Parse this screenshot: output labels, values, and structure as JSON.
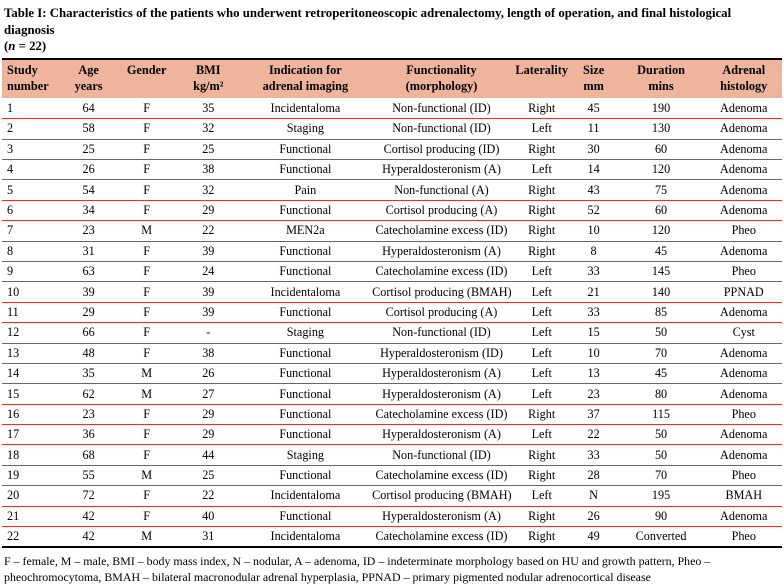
{
  "title": {
    "main": "Table I: Characteristics of the patients who underwent retroperitoneoscopic adrenalectomy, length of operation, and final histological diagnosis",
    "count_open": "(",
    "count_symbol": "n",
    "count_rest": " = 22)"
  },
  "colors": {
    "header_bg": "#efb49c",
    "row_divider": "#c1413e",
    "table_border": "#000000"
  },
  "table": {
    "columns": [
      {
        "id": "study-number",
        "line1": "Study",
        "line2": "number"
      },
      {
        "id": "age-years",
        "line1": "Age",
        "line2": "years"
      },
      {
        "id": "gender",
        "line1": "Gender",
        "line2": ""
      },
      {
        "id": "bmi",
        "line1": "BMI",
        "line2": "kg/m²"
      },
      {
        "id": "indication",
        "line1": "Indication for",
        "line2": "adrenal imaging"
      },
      {
        "id": "functionality",
        "line1": "Functionality",
        "line2": "(morphology)"
      },
      {
        "id": "laterality",
        "line1": "Laterality",
        "line2": ""
      },
      {
        "id": "size-mm",
        "line1": "Size",
        "line2": "mm"
      },
      {
        "id": "duration-mins",
        "line1": "Duration",
        "line2": "mins"
      },
      {
        "id": "adrenal-histology",
        "line1": "Adrenal",
        "line2": "histology"
      }
    ],
    "rows": [
      [
        "1",
        "64",
        "F",
        "35",
        "Incidentaloma",
        "Non-functional (ID)",
        "Right",
        "45",
        "190",
        "Adenoma"
      ],
      [
        "2",
        "58",
        "F",
        "32",
        "Staging",
        "Non-functional (ID)",
        "Left",
        "11",
        "130",
        "Adenoma"
      ],
      [
        "3",
        "25",
        "F",
        "25",
        "Functional",
        "Cortisol producing (ID)",
        "Right",
        "30",
        "60",
        "Adenoma"
      ],
      [
        "4",
        "26",
        "F",
        "38",
        "Functional",
        "Hyperaldosteronism (A)",
        "Left",
        "14",
        "120",
        "Adenoma"
      ],
      [
        "5",
        "54",
        "F",
        "32",
        "Pain",
        "Non-functional (A)",
        "Right",
        "43",
        "75",
        "Adenoma"
      ],
      [
        "6",
        "34",
        "F",
        "29",
        "Functional",
        "Cortisol producing (A)",
        "Right",
        "52",
        "60",
        "Adenoma"
      ],
      [
        "7",
        "23",
        "M",
        "22",
        "MEN2a",
        "Catecholamine excess (ID)",
        "Right",
        "10",
        "120",
        "Pheo"
      ],
      [
        "8",
        "31",
        "F",
        "39",
        "Functional",
        "Hyperaldosteronism (A)",
        "Right",
        "8",
        "45",
        "Adenoma"
      ],
      [
        "9",
        "63",
        "F",
        "24",
        "Functional",
        "Catecholamine excess (ID)",
        "Left",
        "33",
        "145",
        "Pheo"
      ],
      [
        "10",
        "39",
        "F",
        "39",
        "Incidentaloma",
        "Cortisol producing (BMAH)",
        "Left",
        "21",
        "140",
        "PPNAD"
      ],
      [
        "11",
        "29",
        "F",
        "39",
        "Functional",
        "Cortisol producing (A)",
        "Left",
        "33",
        "85",
        "Adenoma"
      ],
      [
        "12",
        "66",
        "F",
        "-",
        "Staging",
        "Non-functional (ID)",
        "Left",
        "15",
        "50",
        "Cyst"
      ],
      [
        "13",
        "48",
        "F",
        "38",
        "Functional",
        "Hyperaldosteronism (ID)",
        "Left",
        "10",
        "70",
        "Adenoma"
      ],
      [
        "14",
        "35",
        "M",
        "26",
        "Functional",
        "Hyperaldosteronism (A)",
        "Left",
        "13",
        "45",
        "Adenoma"
      ],
      [
        "15",
        "62",
        "M",
        "27",
        "Functional",
        "Hyperaldosteronism (A)",
        "Left",
        "23",
        "80",
        "Adenoma"
      ],
      [
        "16",
        "23",
        "F",
        "29",
        "Functional",
        "Catecholamine excess (ID)",
        "Right",
        "37",
        "115",
        "Pheo"
      ],
      [
        "17",
        "36",
        "F",
        "29",
        "Functional",
        "Hyperaldosteronism (A)",
        "Left",
        "22",
        "50",
        "Adenoma"
      ],
      [
        "18",
        "68",
        "F",
        "44",
        "Staging",
        "Non-functional (ID)",
        "Right",
        "33",
        "50",
        "Adenoma"
      ],
      [
        "19",
        "55",
        "M",
        "25",
        "Functional",
        "Catecholamine excess (ID)",
        "Right",
        "28",
        "70",
        "Pheo"
      ],
      [
        "20",
        "72",
        "F",
        "22",
        "Incidentaloma",
        "Cortisol producing (BMAH)",
        "Left",
        "N",
        "195",
        "BMAH"
      ],
      [
        "21",
        "42",
        "F",
        "40",
        "Functional",
        "Hyperaldosteronism (A)",
        "Right",
        "26",
        "90",
        "Adenoma"
      ],
      [
        "22",
        "42",
        "M",
        "31",
        "Incidentaloma",
        "Catecholamine excess (ID)",
        "Right",
        "49",
        "Converted",
        "Pheo"
      ]
    ]
  },
  "footnote": "F – female, M – male, BMI – body mass index, N – nodular, A – adenoma, ID – indeterminate morphology based on HU and growth pattern, Pheo – pheochromocytoma, BMAH – bilateral macronodular adrenal hyperplasia, PPNAD – primary pigmented nodular adrenocortical disease"
}
